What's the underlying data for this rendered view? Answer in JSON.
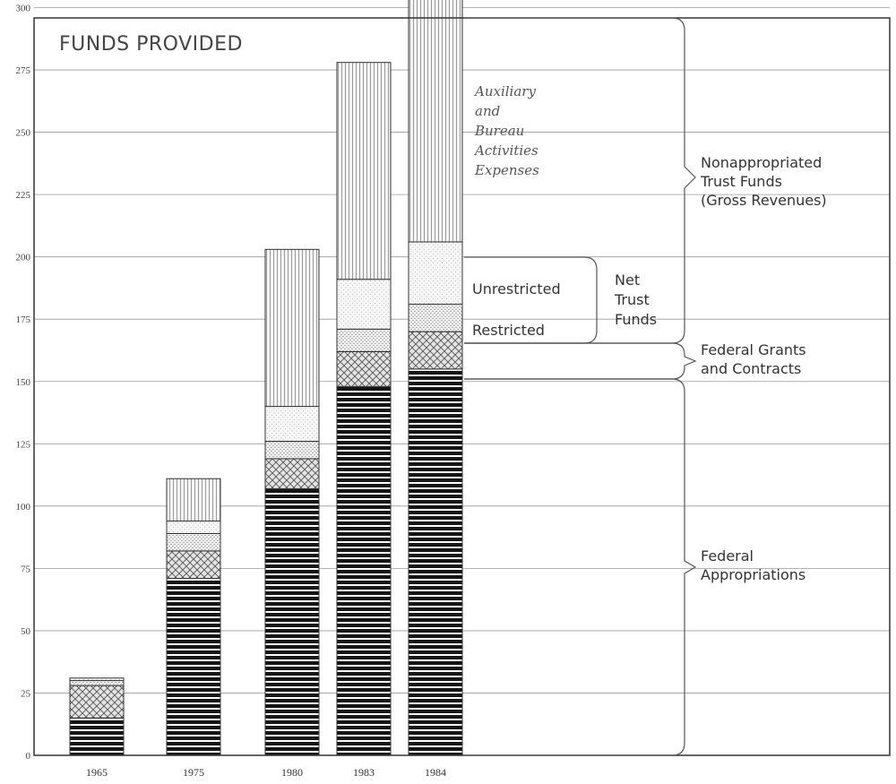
{
  "chart_data": {
    "type": "bar",
    "stacked": true,
    "title": "FUNDS PROVIDED",
    "xlabel": "",
    "ylabel": "",
    "ylim": [
      0,
      300
    ],
    "yticks": [
      0,
      25,
      50,
      75,
      100,
      125,
      150,
      175,
      200,
      225,
      250,
      275,
      300
    ],
    "grid": true,
    "categories": [
      "1965",
      "1975",
      "1980",
      "1983",
      "1984"
    ],
    "series": [
      {
        "name": "Federal Appropriations",
        "values": [
          15,
          71,
          107,
          148,
          155
        ]
      },
      {
        "name": "Federal Grants and Contracts",
        "values": [
          13,
          11,
          12,
          14,
          15
        ]
      },
      {
        "name": "Restricted",
        "values": [
          2,
          7,
          7,
          9,
          11
        ]
      },
      {
        "name": "Unrestricted",
        "values": [
          1,
          5,
          14,
          20,
          25
        ]
      },
      {
        "name": "Auxiliary and Bureau Activities Expenses",
        "values": [
          0,
          17,
          63,
          87,
          100
        ]
      }
    ],
    "annotations": {
      "auxiliary": [
        "Auxiliary",
        "and",
        "Bureau",
        "Activities",
        "Expenses"
      ],
      "unrestricted": "Unrestricted",
      "restricted": "Restricted",
      "net_trust": [
        "Net",
        "Trust",
        "Funds"
      ],
      "nonappropriated": [
        "Nonappropriated",
        "Trust Funds",
        "(Gross Revenues)"
      ],
      "federal_grants": [
        "Federal Grants",
        "and Contracts"
      ],
      "federal_appropriations": [
        "Federal",
        "Appropriations"
      ]
    }
  }
}
